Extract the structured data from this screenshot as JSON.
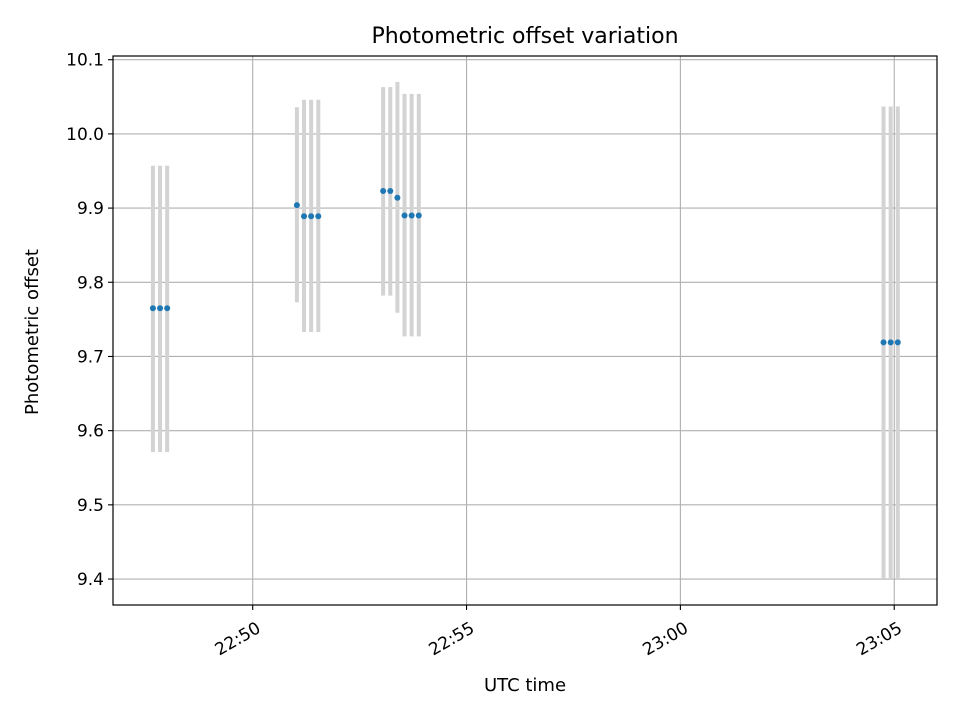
{
  "chart_data": {
    "type": "scatter",
    "title": "Photometric offset variation",
    "xlabel": "UTC time",
    "ylabel": "Photometric offset",
    "xlim": [
      "22:46:44",
      "23:06:00"
    ],
    "ylim": [
      9.365,
      10.105
    ],
    "x_ticks": [
      "22:50",
      "22:55",
      "23:00",
      "23:05"
    ],
    "y_ticks": [
      "9.4",
      "9.5",
      "9.6",
      "9.7",
      "9.8",
      "9.9",
      "10.0",
      "10.1"
    ],
    "grid": true,
    "colors": {
      "marker": "#1f77b4",
      "errorbar": "#d3d3d3",
      "grid": "#b0b0b0"
    },
    "series": [
      {
        "points": [
          {
            "x": "22:47:40",
            "y": 9.765,
            "ylow": 9.571,
            "yhigh": 9.957
          },
          {
            "x": "22:47:50",
            "y": 9.765,
            "ylow": 9.571,
            "yhigh": 9.957
          },
          {
            "x": "22:48:00",
            "y": 9.765,
            "ylow": 9.571,
            "yhigh": 9.957
          },
          {
            "x": "22:51:02",
            "y": 9.904,
            "ylow": 9.773,
            "yhigh": 10.036
          },
          {
            "x": "22:51:12",
            "y": 9.889,
            "ylow": 9.733,
            "yhigh": 10.046
          },
          {
            "x": "22:51:22",
            "y": 9.889,
            "ylow": 9.733,
            "yhigh": 10.046
          },
          {
            "x": "22:51:32",
            "y": 9.889,
            "ylow": 9.733,
            "yhigh": 10.046
          },
          {
            "x": "22:53:03",
            "y": 9.923,
            "ylow": 9.782,
            "yhigh": 10.063
          },
          {
            "x": "22:53:13",
            "y": 9.923,
            "ylow": 9.782,
            "yhigh": 10.063
          },
          {
            "x": "22:53:23",
            "y": 9.914,
            "ylow": 9.759,
            "yhigh": 10.07
          },
          {
            "x": "22:53:33",
            "y": 9.89,
            "ylow": 9.727,
            "yhigh": 10.054
          },
          {
            "x": "22:53:43",
            "y": 9.89,
            "ylow": 9.727,
            "yhigh": 10.054
          },
          {
            "x": "22:53:53",
            "y": 9.89,
            "ylow": 9.727,
            "yhigh": 10.054
          },
          {
            "x": "23:04:45",
            "y": 9.719,
            "ylow": 9.4,
            "yhigh": 10.037
          },
          {
            "x": "23:04:55",
            "y": 9.719,
            "ylow": 9.4,
            "yhigh": 10.037
          },
          {
            "x": "23:05:05",
            "y": 9.719,
            "ylow": 9.4,
            "yhigh": 10.037
          }
        ]
      }
    ]
  }
}
